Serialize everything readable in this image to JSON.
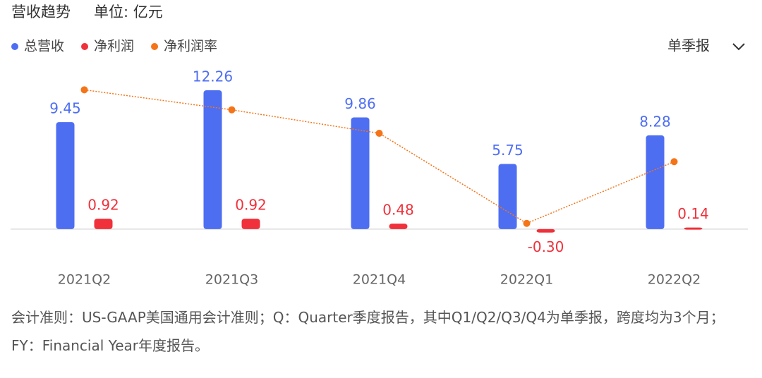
{
  "header": {
    "title": "营收趋势",
    "unit": "单位: 亿元",
    "period_select": "单季报"
  },
  "chart_data": {
    "type": "bar",
    "categories": [
      "2021Q2",
      "2021Q3",
      "2021Q4",
      "2022Q1",
      "2022Q2"
    ],
    "ylim": [
      -2,
      14
    ],
    "y2lim": [
      -8.4,
      11.9
    ],
    "series": [
      {
        "name": "总营收",
        "color": "#4e6ef2",
        "values": [
          9.45,
          12.26,
          9.86,
          5.75,
          8.28
        ]
      },
      {
        "name": "净利润",
        "color": "#f0303a",
        "values": [
          0.92,
          0.92,
          0.48,
          -0.3,
          0.14
        ],
        "value_labels": [
          "0.92",
          "0.92",
          "0.48",
          "-0.30",
          "0.14"
        ]
      },
      {
        "name": "净利润率",
        "color": "#f57418",
        "axis": "y2",
        "type": "line",
        "values": [
          9.74,
          7.5,
          4.87,
          -5.22,
          1.69
        ]
      }
    ]
  },
  "footnote": "会计准则：US-GAAP美国通用会计准则；Q：Quarter季度报告，其中Q1/Q2/Q3/Q4为单季报，跨度均为3个月；FY：Financial Year年度报告。"
}
